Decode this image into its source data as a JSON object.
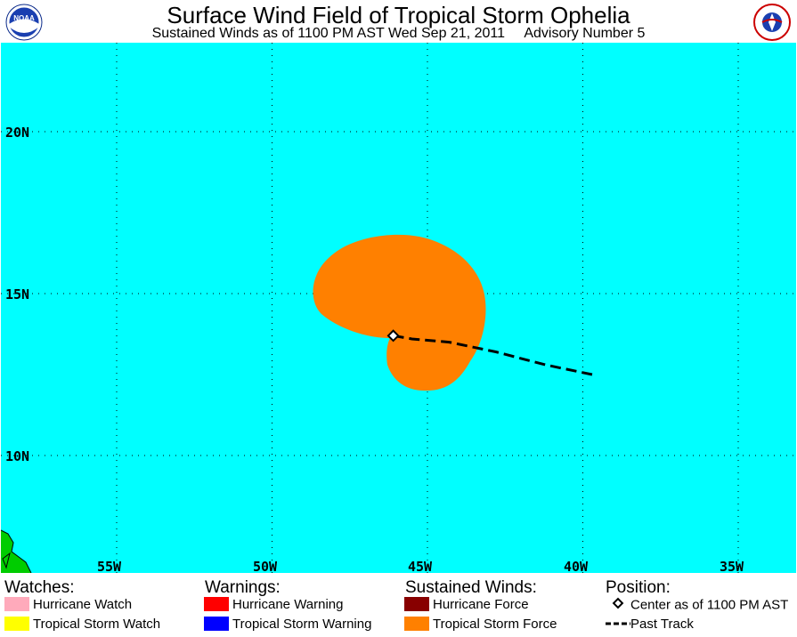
{
  "header": {
    "title": "Surface Wind Field of Tropical Storm Ophelia",
    "subtitle": "Sustained Winds as of 1100 PM AST Wed Sep 21, 2011     Advisory Number 5"
  },
  "logos": {
    "left": {
      "icon": "noaa-logo",
      "text": "NOAA"
    },
    "right": {
      "icon": "national-weather-service-logo",
      "text": "NATIONAL WEATHER SERVICE"
    }
  },
  "map": {
    "ocean_color": "#00ffff",
    "land_color": "#00cc00",
    "latitude_labels": [
      "20N",
      "15N",
      "10N"
    ],
    "longitude_labels": [
      "55W",
      "50W",
      "45W",
      "40W",
      "35W"
    ],
    "storm": {
      "name": "Ophelia",
      "center": {
        "lat": 13.7,
        "lon": -46.1
      },
      "wind_field": "Tropical Storm Force",
      "wind_field_color": "#ff8000",
      "past_track": [
        [
          -46.1,
          13.7
        ],
        [
          -45.5,
          13.6
        ],
        [
          -44.3,
          13.5
        ],
        [
          -42.8,
          13.2
        ],
        [
          -41.2,
          12.8
        ],
        [
          -39.7,
          12.5
        ]
      ]
    }
  },
  "legend": {
    "watches": {
      "heading": "Watches:",
      "items": [
        {
          "label": "Hurricane Watch",
          "color": "#ffaabb"
        },
        {
          "label": "Tropical Storm Watch",
          "color": "#ffff00"
        }
      ]
    },
    "warnings": {
      "heading": "Warnings:",
      "items": [
        {
          "label": "Hurricane Warning",
          "color": "#ff0000"
        },
        {
          "label": "Tropical Storm Warning",
          "color": "#0000ff"
        }
      ]
    },
    "winds": {
      "heading": "Sustained Winds:",
      "items": [
        {
          "label": "Hurricane Force",
          "color": "#880000"
        },
        {
          "label": "Tropical Storm Force",
          "color": "#ff8000"
        }
      ]
    },
    "position": {
      "heading": "Position:",
      "items": [
        {
          "label": "Center as of 1100 PM AST",
          "icon": "diamond-marker-icon"
        },
        {
          "label": "Past Track",
          "icon": "dashed-line-icon"
        }
      ]
    }
  }
}
